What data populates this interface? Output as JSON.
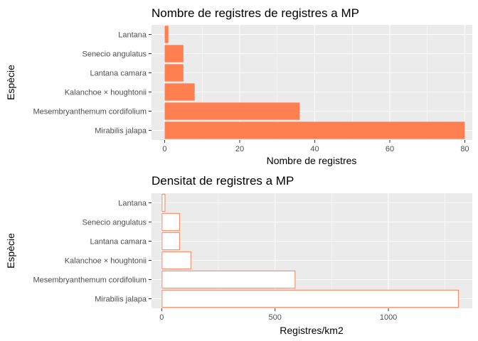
{
  "chart_data": [
    {
      "type": "bar",
      "orientation": "horizontal",
      "title": "Nombre de registres de registres a MP",
      "xlabel": "Nombre de registres",
      "ylabel": "Espècie",
      "categories": [
        "Lantana",
        "Senecio angulatus",
        "Lantana camara",
        "Kalanchoe × houghtonii",
        "Mesembryanthemum cordifolium",
        "Mirabilis jalapa"
      ],
      "values": [
        1,
        5,
        5,
        8,
        36,
        80
      ],
      "xlim": [
        -3.5,
        82
      ],
      "xticks": [
        0,
        20,
        40,
        60,
        80
      ],
      "xtick_labels": [
        "0",
        "20",
        "40",
        "60",
        "80"
      ],
      "bar_fill": "#ff7f50",
      "bar_stroke": "none",
      "grid": true
    },
    {
      "type": "bar",
      "orientation": "horizontal",
      "title": "Densitat de registres a MP",
      "xlabel": "Registres/km2",
      "ylabel": "Espècie",
      "categories": [
        "Lantana",
        "Senecio angulatus",
        "Lantana camara",
        "Kalanchoe × houghtonii",
        "Mesembryanthemum cordifolium",
        "Mirabilis jalapa"
      ],
      "values": [
        16,
        80,
        80,
        130,
        590,
        1310
      ],
      "xlim": [
        -45,
        1370
      ],
      "xticks": [
        0,
        500,
        1000
      ],
      "xtick_labels": [
        "0",
        "500",
        "1000"
      ],
      "bar_fill": "#ffffff",
      "bar_stroke": "#ff7f50",
      "grid": true
    }
  ]
}
